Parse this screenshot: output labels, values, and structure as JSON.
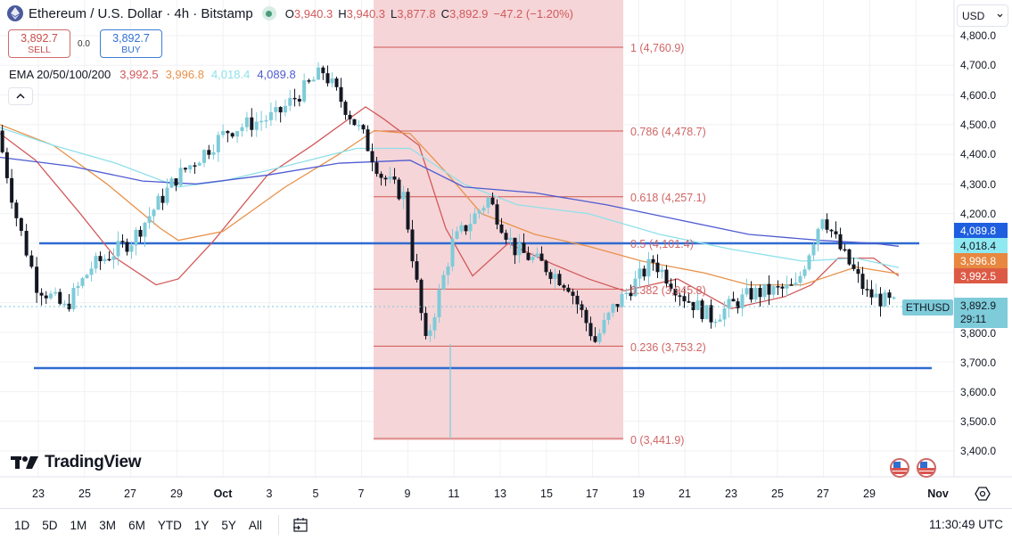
{
  "header": {
    "symbol_title": "Ethereum / U.S. Dollar · 4h · Bitstamp",
    "ohlc": {
      "open_label": "O",
      "open": "3,940.3",
      "high_label": "H",
      "high": "3,940.3",
      "low_label": "L",
      "low": "3,877.8",
      "close_label": "C",
      "close": "3,892.9",
      "change": "−47.2 (−1.20%)"
    }
  },
  "trade": {
    "sell_price": "3,892.7",
    "sell_label": "SELL",
    "spread": "0.0",
    "buy_price": "3,892.7",
    "buy_label": "BUY"
  },
  "indicator": {
    "name": "EMA 20/50/100/200",
    "ema20": "3,992.5",
    "ema50": "3,996.8",
    "ema100": "4,018.4",
    "ema200": "4,089.8"
  },
  "currency_select": "USD",
  "price_axis": {
    "labels": [
      "4,800.0",
      "4,700.0",
      "4,600.0",
      "4,500.0",
      "4,400.0",
      "4,300.0",
      "4,200.0",
      "3,800.0",
      "3,700.0",
      "3,600.0",
      "3,500.0",
      "3,400.0"
    ],
    "tags": {
      "ema200": "4,089.8",
      "ema100": "4,018.4",
      "ema50": "3,996.8",
      "ema20": "3,992.5",
      "last_price": "3,892.9",
      "countdown": "29:11",
      "symbol": "ETHUSD"
    }
  },
  "fib": [
    {
      "label": "1 (4,760.9)"
    },
    {
      "label": "0.786 (4,478.7)"
    },
    {
      "label": "0.618 (4,257.1)"
    },
    {
      "label": "0.5 (4,101.4)"
    },
    {
      "label": "0.382 (3,945.8)"
    },
    {
      "label": "0.236 (3,753.2)"
    },
    {
      "label": "0 (3,441.9)"
    }
  ],
  "time_axis": [
    "23",
    "25",
    "27",
    "29",
    "Oct",
    "3",
    "5",
    "7",
    "9",
    "11",
    "13",
    "15",
    "17",
    "19",
    "21",
    "23",
    "25",
    "27",
    "29",
    "Nov"
  ],
  "branding": "TradingView",
  "bottom_bar": {
    "ranges": [
      "1D",
      "5D",
      "1M",
      "3M",
      "6M",
      "YTD",
      "1Y",
      "5Y",
      "All"
    ],
    "clock": "11:30:49 UTC"
  },
  "colors": {
    "up": "#7ecbd9",
    "down": "#131722",
    "ema20": "#d2595a",
    "ema50": "#e8924a",
    "ema100": "#8fe0ea",
    "ema200": "#4e5bd0",
    "fib_fill": "#f5d5d8",
    "fib_line": "#d0564f",
    "hline": "#2f6bd1"
  },
  "chart_data": {
    "type": "candlestick",
    "title": "Ethereum / U.S. Dollar · 4h · Bitstamp",
    "xlabel": "",
    "ylabel": "USD",
    "ylim": [
      3350,
      4830
    ],
    "x_ticks": [
      "23",
      "25",
      "27",
      "29",
      "Oct",
      "3",
      "5",
      "7",
      "9",
      "11",
      "13",
      "15",
      "17",
      "19",
      "21",
      "23",
      "25",
      "27",
      "29",
      "Nov"
    ],
    "y_ticks": [
      3400,
      3500,
      3600,
      3700,
      3800,
      3900,
      4000,
      4100,
      4200,
      4300,
      4400,
      4500,
      4600,
      4700,
      4800
    ],
    "last": {
      "open": 3940.3,
      "high": 3940.3,
      "low": 3877.8,
      "close": 3892.9,
      "change": -47.2,
      "change_pct": -1.2
    },
    "ema": {
      "ema20": 3992.5,
      "ema50": 3996.8,
      "ema100": 4018.4,
      "ema200": 4089.8
    },
    "fibonacci_retracement": [
      {
        "level": 1,
        "price": 4760.9
      },
      {
        "level": 0.786,
        "price": 4478.7
      },
      {
        "level": 0.618,
        "price": 4257.1
      },
      {
        "level": 0.5,
        "price": 4101.4
      },
      {
        "level": 0.382,
        "price": 3945.8
      },
      {
        "level": 0.236,
        "price": 3753.2
      },
      {
        "level": 0,
        "price": 3441.9
      }
    ],
    "horizontal_lines": [
      4100,
      3680
    ],
    "approx_closes": [
      {
        "date": "Sep 22",
        "price": 4480
      },
      {
        "date": "Sep 23",
        "price": 4190
      },
      {
        "date": "Sep 25",
        "price": 3960
      },
      {
        "date": "Sep 26",
        "price": 3880
      },
      {
        "date": "Sep 27",
        "price": 4020
      },
      {
        "date": "Sep 29",
        "price": 4110
      },
      {
        "date": "Oct 1",
        "price": 4320
      },
      {
        "date": "Oct 3",
        "price": 4480
      },
      {
        "date": "Oct 5",
        "price": 4530
      },
      {
        "date": "Oct 7",
        "price": 4680
      },
      {
        "date": "Oct 8",
        "price": 4460
      },
      {
        "date": "Oct 9",
        "price": 4330
      },
      {
        "date": "Oct 10",
        "price": 4260
      },
      {
        "date": "Oct 11",
        "price": 3760
      },
      {
        "date": "Oct 12",
        "price": 4100
      },
      {
        "date": "Oct 13",
        "price": 4250
      },
      {
        "date": "Oct 14",
        "price": 4080
      },
      {
        "date": "Oct 15",
        "price": 4030
      },
      {
        "date": "Oct 16",
        "price": 3960
      },
      {
        "date": "Oct 17",
        "price": 3770
      },
      {
        "date": "Oct 18",
        "price": 3880
      },
      {
        "date": "Oct 20",
        "price": 4040
      },
      {
        "date": "Oct 21",
        "price": 3920
      },
      {
        "date": "Oct 22",
        "price": 3850
      },
      {
        "date": "Oct 24",
        "price": 3930
      },
      {
        "date": "Oct 26",
        "price": 3950
      },
      {
        "date": "Oct 27",
        "price": 4200
      },
      {
        "date": "Oct 28",
        "price": 4080
      },
      {
        "date": "Oct 29",
        "price": 3930
      },
      {
        "date": "Oct 30",
        "price": 3893
      }
    ]
  }
}
